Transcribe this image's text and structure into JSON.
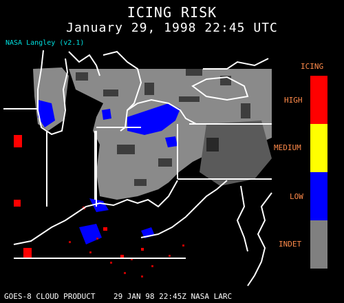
{
  "header": {
    "title": "ICING RISK",
    "timestamp": "January 29, 1998 22:45 UTC",
    "version": "NASA Langley (v2.1)"
  },
  "legend": {
    "title": "ICING",
    "levels": [
      {
        "label": "HIGH",
        "color": "#ff0000"
      },
      {
        "label": "MEDIUM",
        "color": "#ffff00"
      },
      {
        "label": "LOW",
        "color": "#0000ff"
      },
      {
        "label": "INDET",
        "color": "#808080"
      }
    ]
  },
  "footer": {
    "text": "GOES-8 CLOUD PRODUCT    29 JAN 98 22:45Z NASA LARC"
  }
}
